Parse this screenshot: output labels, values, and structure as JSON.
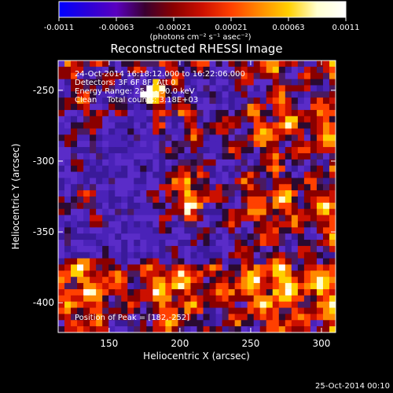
{
  "colorbar": {
    "ticks": [
      "-0.0011",
      "-0.00063",
      "-0.00021",
      "0.00021",
      "0.00063",
      "0.0011"
    ],
    "units_label": "(photons cm⁻² s⁻¹ asec⁻²)",
    "colors": [
      "#0000ff",
      "#2b00d8",
      "#5a00c0",
      "#3a0030",
      "#8a0000",
      "#cc1000",
      "#ff4000",
      "#ff8a00",
      "#ffd000",
      "#ffffd0",
      "#ffffff"
    ]
  },
  "chart_data": {
    "type": "heatmap",
    "title": "Reconstructed RHESSI Image",
    "xlabel": "Heliocentric X (arcsec)",
    "ylabel": "Heliocentric Y (arcsec)",
    "xlim": [
      114,
      310
    ],
    "ylim": [
      -421,
      -229
    ],
    "x_ticks": [
      150,
      200,
      250,
      300
    ],
    "y_ticks": [
      -250,
      -300,
      -350,
      -400
    ],
    "value_range": [
      -0.0011,
      0.0011
    ],
    "peak": [
      182,
      -252
    ]
  },
  "annotations": [
    "24-Oct-2014 16:18:12.000 to 16:22:06.000",
    "Detectors: 3F 6F 8F, Att 0",
    "Energy Range: 25.0 - 50.0 keV",
    "Clean    Total counts: 3.18E+03"
  ],
  "peak_label": "Position of Peak = [182,-252]",
  "footer_timestamp": "25-Oct-2014 00:10"
}
